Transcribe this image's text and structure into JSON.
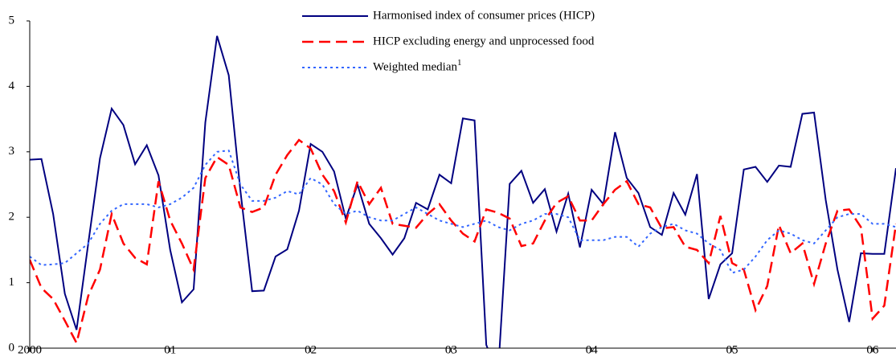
{
  "chart_data": {
    "type": "line",
    "categories": [
      "2000",
      null,
      null,
      null,
      null,
      null,
      null,
      null,
      null,
      null,
      null,
      null,
      "01",
      null,
      null,
      null,
      null,
      null,
      null,
      null,
      null,
      null,
      null,
      null,
      "02",
      null,
      null,
      null,
      null,
      null,
      null,
      null,
      null,
      null,
      null,
      null,
      "03",
      null,
      null,
      null,
      null,
      null,
      null,
      null,
      null,
      null,
      null,
      null,
      "04",
      null,
      null,
      null,
      null,
      null,
      null,
      null,
      null,
      null,
      null,
      null,
      "05",
      null,
      null,
      null,
      null,
      null,
      null,
      null,
      null,
      null,
      null,
      null,
      "06",
      null,
      null
    ],
    "ylim": [
      0,
      5
    ],
    "yticks": [
      0,
      1,
      2,
      3,
      4,
      5
    ],
    "series": [
      {
        "name": "Harmonised index of consumer prices (HICP)",
        "color": "#000080",
        "dash": "solid",
        "values": [
          2.88,
          2.89,
          2.05,
          0.83,
          0.28,
          1.6,
          2.9,
          3.66,
          3.41,
          2.81,
          3.1,
          2.64,
          1.5,
          0.7,
          0.9,
          3.45,
          4.77,
          4.17,
          2.4,
          0.87,
          0.88,
          1.4,
          1.51,
          2.1,
          3.12,
          3.0,
          2.7,
          1.98,
          2.5,
          1.9,
          1.68,
          1.43,
          1.68,
          2.22,
          2.12,
          2.65,
          2.52,
          3.51,
          3.48,
          0.05,
          -0.4,
          2.51,
          2.71,
          2.22,
          2.43,
          1.78,
          2.36,
          1.54,
          2.42,
          2.2,
          3.3,
          2.6,
          2.37,
          1.85,
          1.73,
          2.37,
          2.04,
          2.66,
          0.75,
          1.28,
          1.45,
          2.73,
          2.77,
          2.54,
          2.79,
          2.77,
          3.58,
          3.6,
          2.26,
          1.2,
          0.4,
          1.45,
          1.44,
          1.44,
          2.75
        ]
      },
      {
        "name": "HICP excluding energy and unprocessed food",
        "color": "#ff0000",
        "dash": "dashed",
        "values": [
          1.35,
          0.92,
          0.75,
          0.42,
          0.08,
          0.8,
          1.2,
          2.05,
          1.6,
          1.38,
          1.28,
          2.55,
          1.95,
          1.6,
          1.2,
          2.6,
          2.92,
          2.8,
          2.15,
          2.08,
          2.15,
          2.65,
          2.95,
          3.18,
          3.05,
          2.65,
          2.4,
          1.92,
          2.55,
          2.2,
          2.45,
          1.9,
          1.87,
          1.84,
          2.05,
          2.2,
          1.95,
          1.75,
          1.63,
          2.12,
          2.07,
          1.98,
          1.56,
          1.6,
          1.95,
          2.22,
          2.32,
          1.95,
          1.95,
          2.2,
          2.42,
          2.55,
          2.2,
          2.15,
          1.83,
          1.85,
          1.55,
          1.5,
          1.3,
          2.02,
          1.3,
          1.2,
          0.58,
          0.95,
          1.88,
          1.45,
          1.6,
          0.98,
          1.6,
          2.1,
          2.12,
          1.85,
          0.45,
          0.65,
          1.9
        ]
      },
      {
        "name": "Weighted median",
        "name_superscript": "1",
        "color": "#3366ff",
        "dash": "dotted",
        "values": [
          1.4,
          1.27,
          1.28,
          1.3,
          1.45,
          1.6,
          1.9,
          2.1,
          2.2,
          2.2,
          2.2,
          2.15,
          2.2,
          2.3,
          2.45,
          2.8,
          3.0,
          3.02,
          2.5,
          2.25,
          2.25,
          2.3,
          2.4,
          2.35,
          2.6,
          2.5,
          2.2,
          2.05,
          2.1,
          2.0,
          1.95,
          1.95,
          2.05,
          2.15,
          2.05,
          1.95,
          1.9,
          1.85,
          1.9,
          1.95,
          1.85,
          1.8,
          1.9,
          1.95,
          2.05,
          2.05,
          2.0,
          1.65,
          1.65,
          1.65,
          1.7,
          1.7,
          1.55,
          1.75,
          1.85,
          1.9,
          1.8,
          1.75,
          1.6,
          1.5,
          1.15,
          1.2,
          1.4,
          1.65,
          1.8,
          1.75,
          1.65,
          1.6,
          1.8,
          2.0,
          2.05,
          2.05,
          1.9,
          1.9,
          1.85
        ]
      }
    ]
  }
}
